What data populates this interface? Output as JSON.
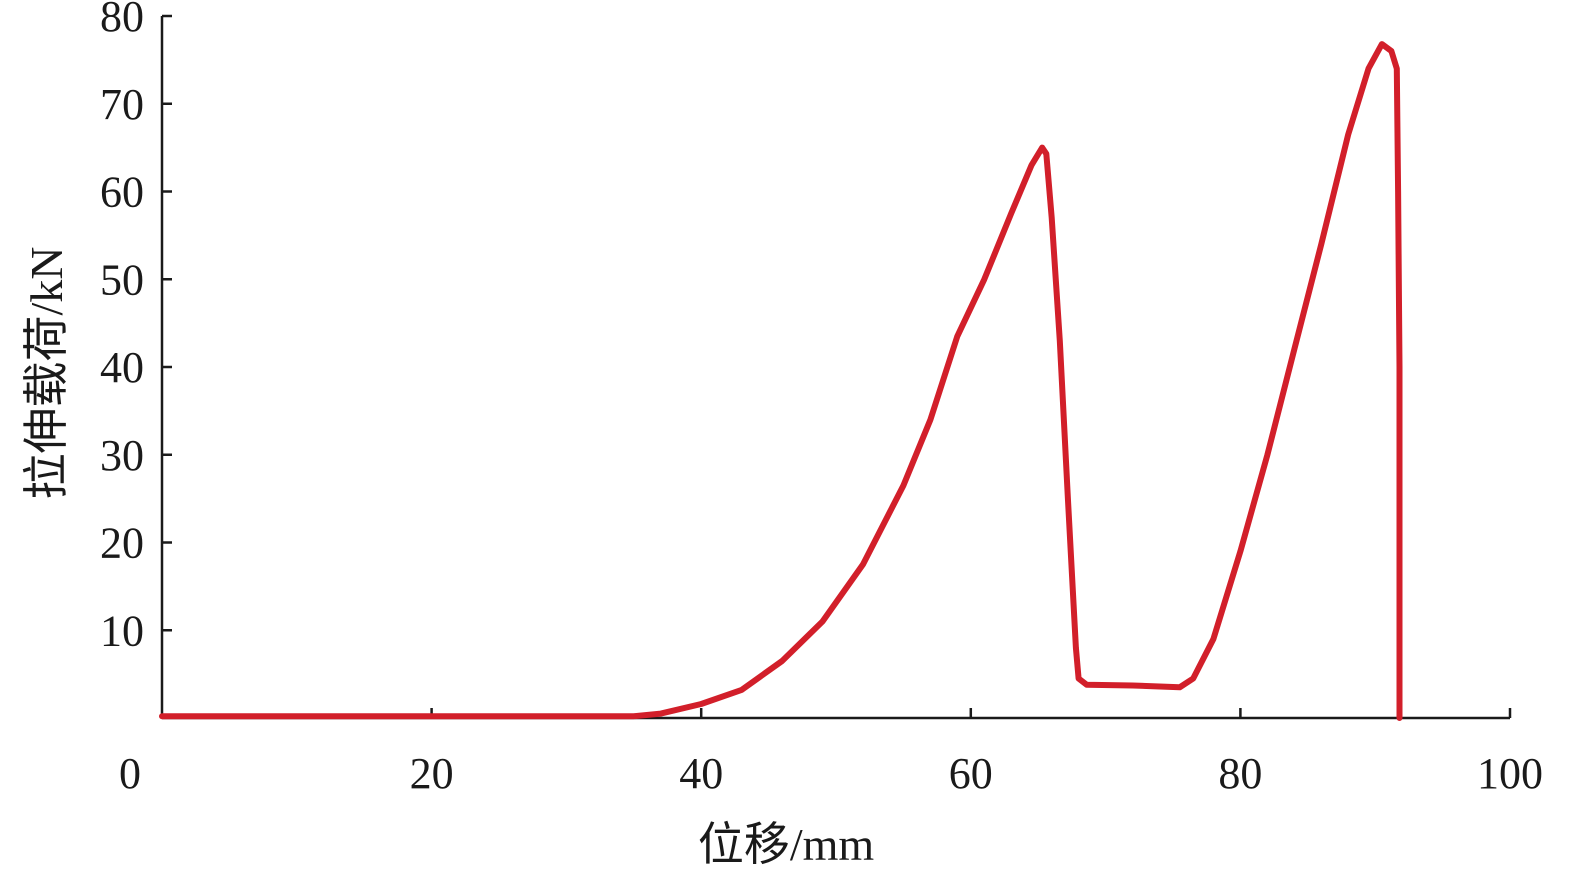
{
  "chart_data": {
    "type": "line",
    "xlabel": "位移/mm",
    "ylabel": "拉伸载荷/kN",
    "xlim": [
      0,
      100
    ],
    "ylim": [
      0,
      80
    ],
    "x_ticks": [
      0,
      20,
      40,
      60,
      80,
      100
    ],
    "y_ticks": [
      10,
      20,
      30,
      40,
      50,
      60,
      70,
      80
    ],
    "grid": false,
    "series": [
      {
        "color": "#d21f2a",
        "points": [
          [
            0,
            0.2
          ],
          [
            10,
            0.2
          ],
          [
            20,
            0.2
          ],
          [
            30,
            0.2
          ],
          [
            35,
            0.2
          ],
          [
            37,
            0.5
          ],
          [
            40,
            1.6
          ],
          [
            43,
            3.2
          ],
          [
            46,
            6.5
          ],
          [
            49,
            11
          ],
          [
            52,
            17.5
          ],
          [
            55,
            26.5
          ],
          [
            57,
            34
          ],
          [
            59,
            43.5
          ],
          [
            61,
            50
          ],
          [
            63,
            57.5
          ],
          [
            64.5,
            63
          ],
          [
            65.3,
            65
          ],
          [
            65.6,
            64.3
          ],
          [
            66,
            57
          ],
          [
            66.6,
            43
          ],
          [
            67.2,
            25
          ],
          [
            67.8,
            8
          ],
          [
            68,
            4.5
          ],
          [
            68.6,
            3.8
          ],
          [
            72,
            3.7
          ],
          [
            75.5,
            3.5
          ],
          [
            76.5,
            4.5
          ],
          [
            78,
            9
          ],
          [
            80,
            19
          ],
          [
            82,
            30
          ],
          [
            84,
            42
          ],
          [
            86,
            54
          ],
          [
            88,
            66.5
          ],
          [
            89.5,
            74
          ],
          [
            90.5,
            76.8
          ],
          [
            91.2,
            76
          ],
          [
            91.6,
            74
          ],
          [
            91.7,
            60
          ],
          [
            91.8,
            40
          ],
          [
            91.8,
            20
          ],
          [
            91.8,
            0
          ]
        ]
      }
    ]
  }
}
